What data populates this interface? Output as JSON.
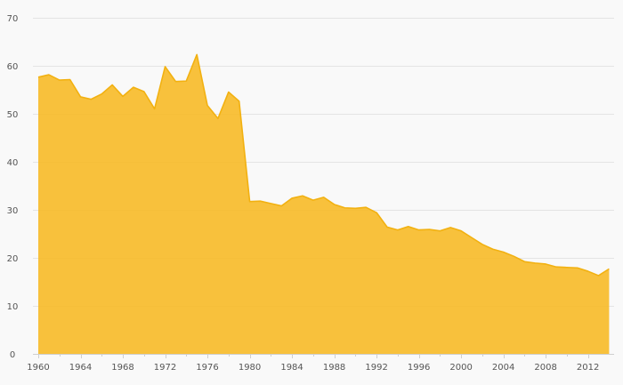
{
  "chart_data": {
    "type": "area",
    "title": "",
    "xlabel": "",
    "ylabel": "",
    "xlim": [
      1960,
      2014
    ],
    "ylim": [
      0,
      70
    ],
    "grid": true,
    "legend": "none",
    "x_ticks": [
      "1960",
      "1964",
      "1968",
      "1972",
      "1976",
      "1980",
      "1984",
      "1988",
      "1992",
      "1996",
      "2000",
      "2004",
      "2008",
      "2012"
    ],
    "y_ticks": [
      "0",
      "10",
      "20",
      "30",
      "40",
      "50",
      "60",
      "70"
    ],
    "series": [
      {
        "color": "#f7bc2b",
        "stroke": "#f2b111",
        "x": [
          1960,
          1961,
          1962,
          1963,
          1964,
          1965,
          1966,
          1967,
          1968,
          1969,
          1970,
          1971,
          1972,
          1973,
          1974,
          1975,
          1976,
          1977,
          1978,
          1979,
          1980,
          1981,
          1982,
          1983,
          1984,
          1985,
          1986,
          1987,
          1988,
          1989,
          1990,
          1991,
          1992,
          1993,
          1994,
          1995,
          1996,
          1997,
          1998,
          1999,
          2000,
          2001,
          2002,
          2003,
          2004,
          2005,
          2006,
          2007,
          2008,
          2009,
          2010,
          2011,
          2012,
          2013,
          2014
        ],
        "values": [
          57.6,
          58.1,
          57.0,
          57.1,
          53.5,
          53.0,
          54.1,
          56.0,
          53.6,
          55.5,
          54.6,
          51.0,
          59.8,
          56.7,
          56.8,
          62.3,
          51.7,
          49.0,
          54.5,
          52.6,
          31.7,
          31.8,
          31.3,
          30.8,
          32.4,
          32.9,
          32.0,
          32.6,
          31.1,
          30.4,
          30.3,
          30.5,
          29.4,
          26.4,
          25.8,
          26.5,
          25.8,
          25.9,
          25.6,
          26.3,
          25.6,
          24.2,
          22.8,
          21.8,
          21.2,
          20.3,
          19.2,
          18.9,
          18.7,
          18.1,
          18.0,
          17.9,
          17.2,
          16.3,
          17.7
        ]
      }
    ]
  }
}
